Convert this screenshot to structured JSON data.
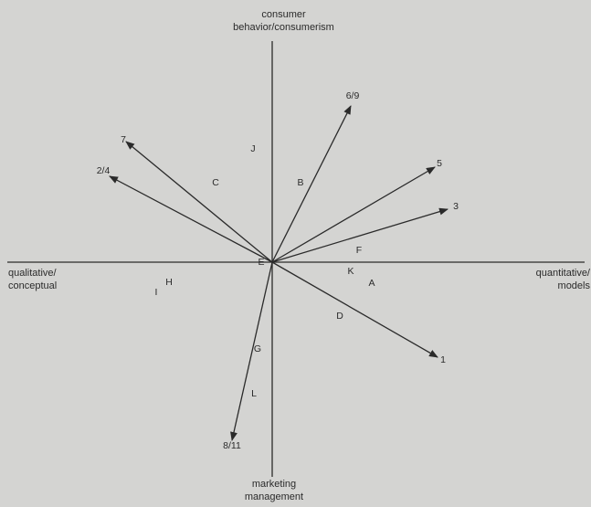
{
  "axes": {
    "top": [
      "consumer",
      "behavior/consumerism"
    ],
    "bottom": [
      "marketing",
      "management"
    ],
    "left": [
      "qualitative/",
      "conceptual"
    ],
    "right": [
      "quantitative/",
      "models"
    ]
  },
  "colors": {
    "ink": "#2a2a2a",
    "background": "#d4d4d2"
  },
  "vectors": [
    {
      "label": "6/9",
      "direction": "upper-right"
    },
    {
      "label": "5",
      "direction": "right-up"
    },
    {
      "label": "3",
      "direction": "right-up"
    },
    {
      "label": "7",
      "direction": "upper-left"
    },
    {
      "label": "2/4",
      "direction": "upper-left"
    },
    {
      "label": "1",
      "direction": "lower-right"
    },
    {
      "label": "8/11",
      "direction": "down"
    }
  ],
  "points": [
    "J",
    "C",
    "B",
    "F",
    "E",
    "K",
    "A",
    "H",
    "I",
    "D",
    "G",
    "L"
  ]
}
